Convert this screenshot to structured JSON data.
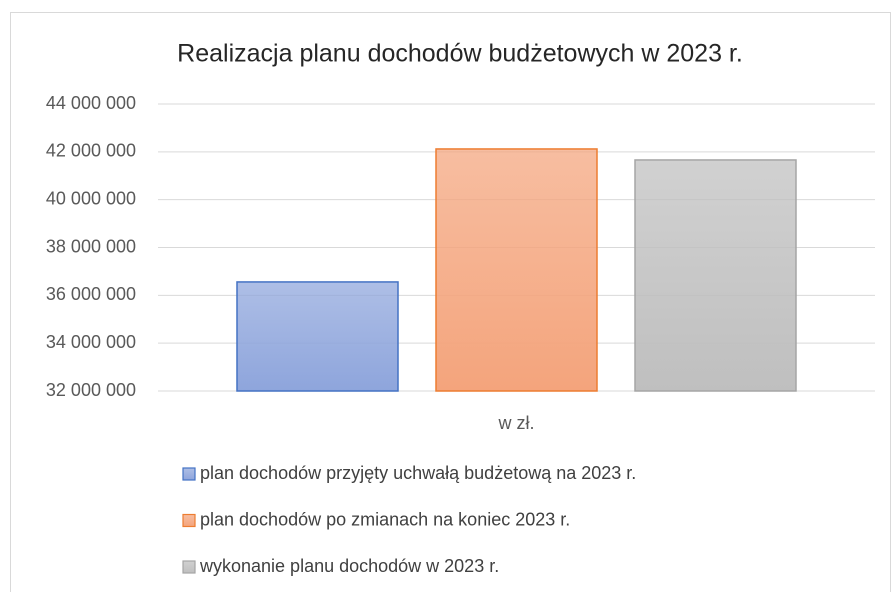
{
  "chart_data": {
    "type": "bar",
    "title": "Realizacja planu dochodów budżetowych w 2023 r.",
    "categories": [
      "w zł."
    ],
    "series": [
      {
        "name": "plan dochodów przyjęty uchwałą budżetową na 2023 r.",
        "color": "#8ea5dc",
        "stroke": "#4472c4",
        "values": [
          36560000
        ]
      },
      {
        "name": "plan dochodów po zmianach na koniec 2023 r.",
        "color": "#f4a47c",
        "stroke": "#ed7d31",
        "values": [
          42120000
        ]
      },
      {
        "name": "wykonanie planu dochodów w 2023 r.",
        "color": "#bfbfbf",
        "stroke": "#a5a5a5",
        "values": [
          41660000
        ]
      }
    ],
    "ylim": [
      32000000,
      44000000
    ],
    "yticks": [
      {
        "value": 32000000,
        "label": "32 000 000"
      },
      {
        "value": 34000000,
        "label": "34 000 000"
      },
      {
        "value": 36000000,
        "label": "36 000 000"
      },
      {
        "value": 38000000,
        "label": "38 000 000"
      },
      {
        "value": 40000000,
        "label": "40 000 000"
      },
      {
        "value": 42000000,
        "label": "42 000 000"
      },
      {
        "value": 44000000,
        "label": "44 000 000"
      }
    ],
    "grid": true,
    "legend": "bottom"
  }
}
